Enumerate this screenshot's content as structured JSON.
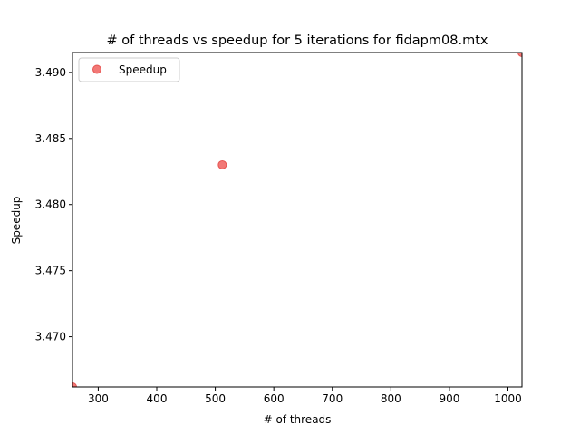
{
  "chart_data": {
    "type": "scatter",
    "title": "# of threads vs speedup for 5 iterations for fidapm08.mtx",
    "xlabel": "# of threads",
    "ylabel": "Speedup",
    "xlim": [
      256,
      1024
    ],
    "ylim": [
      3.4662,
      3.4915
    ],
    "xticks": [
      300,
      400,
      500,
      600,
      700,
      800,
      900,
      1000
    ],
    "yticks": [
      3.47,
      3.475,
      3.48,
      3.485,
      3.49
    ],
    "ytick_labels": [
      "3.470",
      "3.475",
      "3.480",
      "3.485",
      "3.490"
    ],
    "grid": false,
    "legend": {
      "position": "top-left"
    },
    "series": [
      {
        "name": "Speedup",
        "color": "#f0605e",
        "marker": "circle",
        "points": [
          {
            "x": 256,
            "y": 3.4662
          },
          {
            "x": 512,
            "y": 3.483
          },
          {
            "x": 1024,
            "y": 3.4915
          }
        ]
      }
    ]
  }
}
